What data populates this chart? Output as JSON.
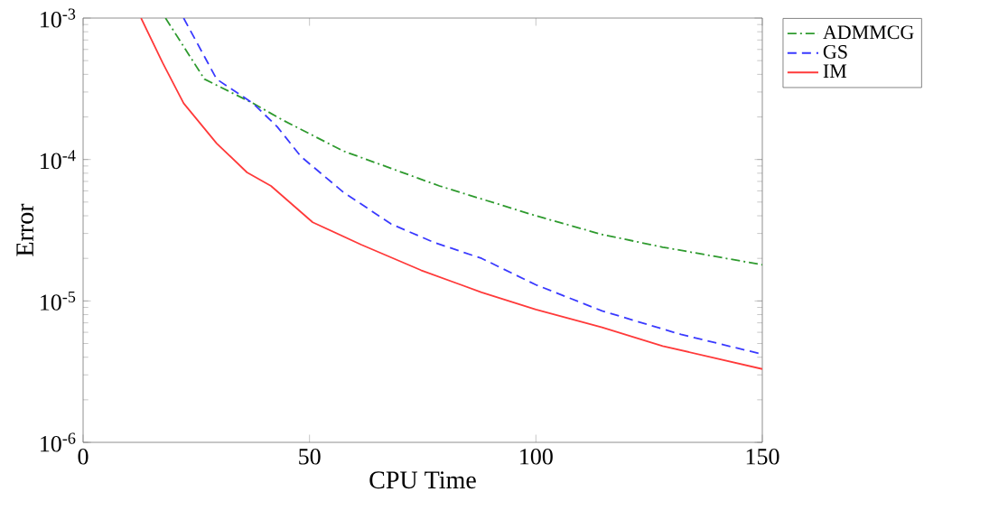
{
  "chart_data": {
    "type": "line",
    "xlabel": "CPU Time",
    "ylabel": "Error",
    "log": "y",
    "xlim": [
      0,
      150
    ],
    "xticks": [
      0,
      50,
      100,
      150
    ],
    "ylim": [
      1e-06,
      0.001
    ],
    "yticks": [
      {
        "value": 1e-06,
        "label": "10$^{-6}$"
      },
      {
        "value": 1e-05,
        "label": "10$^{-5}$"
      },
      {
        "value": 0.0001,
        "label": "10$^{-4}$"
      },
      {
        "value": 0.001,
        "label": "10$^{-3}$"
      }
    ],
    "legend": "top right",
    "grid": false,
    "marker": "none",
    "series": [
      {
        "name": "ADMMCG",
        "color": "#2e9a2e",
        "line_style": "dashdot",
        "x": [
          18.2,
          26.8,
          37.5,
          44.1,
          57.4,
          78.7,
          100,
          114.6,
          128,
          150
        ],
        "values": [
          0.001,
          0.00037,
          0.00025,
          0.00019,
          0.000115,
          6.5e-05,
          4e-05,
          2.95e-05,
          2.4e-05,
          1.8e-05
        ]
      },
      {
        "name": "GS",
        "color": "#3a3aff",
        "line_style": "dashed",
        "x": [
          22.2,
          29.5,
          37.5,
          42.9,
          48.1,
          57.4,
          68,
          77.4,
          88,
          100,
          114.6,
          132,
          150
        ],
        "values": [
          0.001,
          0.00037,
          0.00025,
          0.00017,
          0.000105,
          5.9e-05,
          3.5e-05,
          2.6e-05,
          2e-05,
          1.3e-05,
          8.5e-06,
          5.8e-06,
          4.2e-06
        ]
      },
      {
        "name": "IM",
        "color": "#ff3a3a",
        "line_style": "solid",
        "x": [
          12.8,
          17.6,
          22.2,
          29.5,
          36.2,
          41.5,
          50.7,
          61.4,
          74.6,
          88,
          100,
          114.6,
          128,
          150
        ],
        "values": [
          0.001,
          0.00048,
          0.00025,
          0.00013,
          8.1e-05,
          6.5e-05,
          3.6e-05,
          2.5e-05,
          1.65e-05,
          1.15e-05,
          8.7e-06,
          6.5e-06,
          4.8e-06,
          3.3e-06
        ]
      }
    ]
  }
}
